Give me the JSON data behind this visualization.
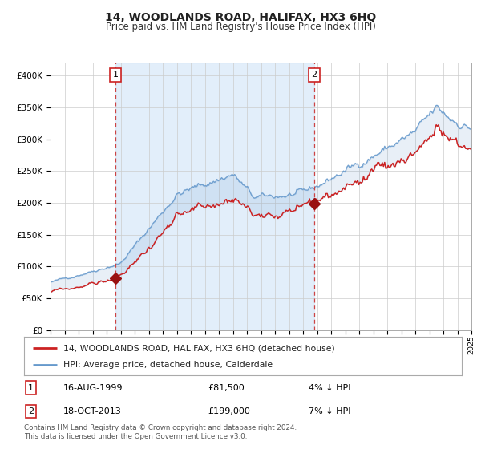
{
  "title": "14, WOODLANDS ROAD, HALIFAX, HX3 6HQ",
  "subtitle": "Price paid vs. HM Land Registry's House Price Index (HPI)",
  "legend_property": "14, WOODLANDS ROAD, HALIFAX, HX3 6HQ (detached house)",
  "legend_hpi": "HPI: Average price, detached house, Calderdale",
  "sale1_date": "16-AUG-1999",
  "sale1_price": 81500,
  "sale2_date": "18-OCT-2013",
  "sale2_price": 199000,
  "sale1_note": "4% ↓ HPI",
  "sale2_note": "7% ↓ HPI",
  "footnote": "Contains HM Land Registry data © Crown copyright and database right 2024.\nThis data is licensed under the Open Government Licence v3.0.",
  "plot_bg": "#e8f0f8",
  "hpi_color": "#6699cc",
  "property_color": "#cc2222",
  "marker_color": "#991111",
  "dashed_color": "#cc4444",
  "shade_color": "#d0e4f7",
  "grid_color": "#cccccc",
  "ylim": [
    0,
    420000
  ],
  "yticks": [
    0,
    50000,
    100000,
    150000,
    200000,
    250000,
    300000,
    350000,
    400000
  ],
  "ytick_labels": [
    "£0",
    "£50K",
    "£100K",
    "£150K",
    "£200K",
    "£250K",
    "£300K",
    "£350K",
    "£400K"
  ],
  "start_year": 1995,
  "end_year": 2025,
  "sale1_x": 1999.625,
  "sale2_x": 2013.79
}
